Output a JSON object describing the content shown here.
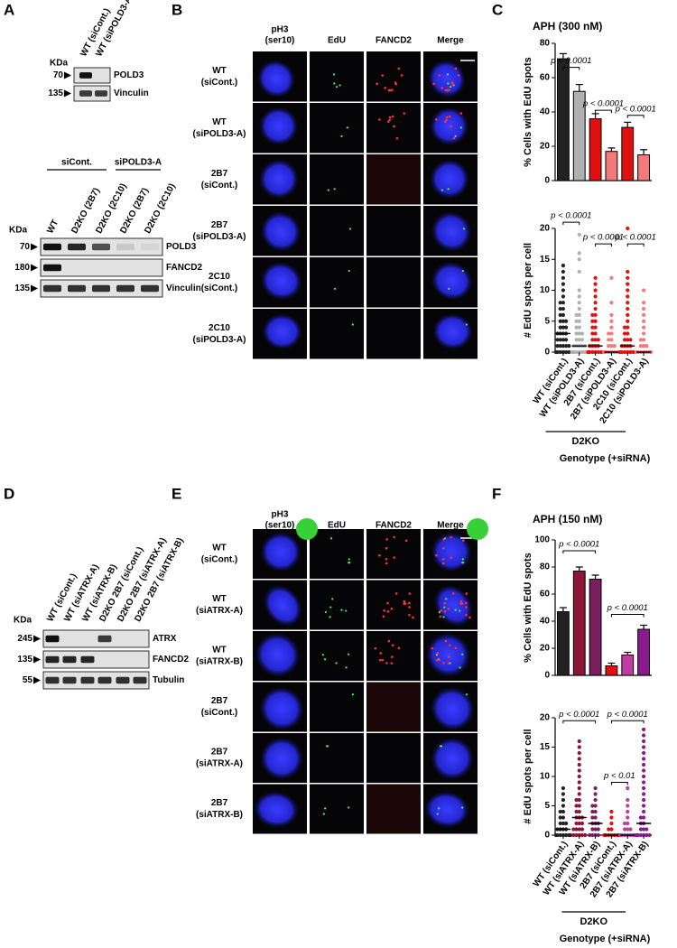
{
  "panel_labels": [
    "A",
    "B",
    "C",
    "D",
    "E",
    "F"
  ],
  "blot_a1": {
    "kda": "KDa",
    "lanes": [
      "WT (siCont.)",
      "WT (siPOLD3-A)"
    ],
    "rows": [
      {
        "mw": 70,
        "label": "POLD3"
      },
      {
        "mw": 135,
        "label": "Vinculin"
      }
    ]
  },
  "blot_a2": {
    "kda": "KDa",
    "groups": [
      "siCont.",
      "siPOLD3-A"
    ],
    "lanes": [
      "WT",
      "D2KO (2B7)",
      "D2KO (2C10)",
      "D2KO (2B7)",
      "D2KO (2C10)"
    ],
    "rows": [
      {
        "mw": 70,
        "label": "POLD3"
      },
      {
        "mw": 180,
        "label": "FANCD2"
      },
      {
        "mw": 135,
        "label": "Vinculin"
      }
    ]
  },
  "blot_d": {
    "kda": "KDa",
    "lanes": [
      "WT (siCont.)",
      "WT (siATRX-A)",
      "WT (siATRX-B)",
      "D2KO 2B7 (siCont.)",
      "D2KO 2B7 (siATRX-A)",
      "D2KO 2B7 (siATRX-B)"
    ],
    "rows": [
      {
        "mw": 245,
        "label": "ATRX"
      },
      {
        "mw": 135,
        "label": "FANCD2"
      },
      {
        "mw": 55,
        "label": "Tubulin"
      }
    ]
  },
  "images_b": {
    "columns": [
      [
        "pH3",
        "(ser10)"
      ],
      [
        "EdU"
      ],
      [
        "FANCD2"
      ],
      [
        "Merge"
      ]
    ],
    "rows": [
      [
        "WT",
        "(siCont.)"
      ],
      [
        "WT",
        "(siPOLD3-A)"
      ],
      [
        "2B7",
        "(siCont.)"
      ],
      [
        "2B7",
        "(siPOLD3-A)"
      ],
      [
        "2C10",
        "(siCont.)"
      ],
      [
        "2C10",
        "(siPOLD3-A)"
      ]
    ]
  },
  "images_e": {
    "columns": [
      [
        "pH3",
        "(ser10)"
      ],
      [
        "EdU"
      ],
      [
        "FANCD2"
      ],
      [
        "Merge"
      ]
    ],
    "rows": [
      [
        "WT",
        "(siCont.)"
      ],
      [
        "WT",
        "(siATRX-A)"
      ],
      [
        "WT",
        "(siATRX-B)"
      ],
      [
        "2B7",
        "(siCont.)"
      ],
      [
        "2B7",
        "(siATRX-A)"
      ],
      [
        "2B7",
        "(siATRX-B)"
      ]
    ]
  },
  "chart_data": [
    {
      "type": "bar",
      "title": "APH (300 nM)",
      "ylabel": "% Cells with EdU spots",
      "values": [
        71,
        52,
        36,
        17,
        31,
        15
      ],
      "errors": [
        3,
        4,
        3,
        2,
        3,
        3
      ],
      "colors": [
        "#222222",
        "#b0b0b0",
        "#e01010",
        "#f27a7a",
        "#e01010",
        "#f27a7a"
      ],
      "ylim": [
        0,
        80
      ],
      "yticks": [
        0,
        20,
        40,
        60,
        80
      ],
      "annotations": [
        "p < 0.0001",
        "p < 0.0001",
        "p < 0.0001"
      ]
    },
    {
      "type": "strip",
      "ylabel": "# EdU spots per cell",
      "categories": [
        "WT (siCont.)",
        "WT (siPOLD3-A)",
        "2B7 (siCont.)",
        "2B7 (siPOLD3-A)",
        "2C10 (siCont.)",
        "2C10 (siPOLD3-A)"
      ],
      "points": [
        [
          0,
          0,
          0,
          0,
          0,
          0,
          1,
          1,
          1,
          1,
          1,
          2,
          2,
          2,
          2,
          3,
          3,
          3,
          3,
          4,
          4,
          4,
          5,
          5,
          5,
          6,
          6,
          7,
          7,
          8,
          8,
          9,
          10,
          11,
          12,
          13,
          14
        ],
        [
          0,
          0,
          0,
          0,
          0,
          0,
          0,
          1,
          1,
          1,
          1,
          1,
          2,
          2,
          2,
          3,
          3,
          3,
          4,
          4,
          5,
          5,
          6,
          6,
          7,
          8,
          9,
          10,
          13,
          15,
          16,
          19
        ],
        [
          0,
          0,
          0,
          0,
          0,
          0,
          1,
          1,
          1,
          1,
          2,
          2,
          2,
          3,
          3,
          4,
          4,
          5,
          5,
          6,
          6,
          7,
          8,
          9,
          10,
          11,
          12
        ],
        [
          0,
          0,
          0,
          0,
          0,
          0,
          0,
          0,
          1,
          1,
          1,
          2,
          2,
          3,
          3,
          4,
          5,
          6,
          8,
          12
        ],
        [
          0,
          0,
          0,
          0,
          0,
          0,
          1,
          1,
          1,
          1,
          2,
          2,
          2,
          3,
          3,
          4,
          4,
          5,
          6,
          7,
          8,
          9,
          10,
          11,
          12,
          13,
          20
        ],
        [
          0,
          0,
          0,
          0,
          0,
          0,
          0,
          1,
          1,
          1,
          2,
          2,
          3,
          4,
          5,
          6,
          7,
          8,
          10
        ]
      ],
      "medians": [
        3,
        1,
        1,
        0,
        1,
        0
      ],
      "colors": [
        "#222222",
        "#b0b0b0",
        "#e01010",
        "#f27a7a",
        "#e01010",
        "#f27a7a"
      ],
      "ylim": [
        0,
        20
      ],
      "yticks": [
        0,
        5,
        10,
        15,
        20
      ],
      "annotations": [
        "p < 0.0001",
        "p < 0.0001",
        "p < 0.0001"
      ],
      "group_label": "D2KO",
      "xlabel": "Genotype (+siRNA)"
    },
    {
      "type": "bar",
      "title": "APH (150 nM)",
      "ylabel": "% Cells with EdU spots",
      "values": [
        47,
        77,
        71,
        7,
        15,
        34
      ],
      "errors": [
        3,
        3,
        3,
        2,
        2,
        3
      ],
      "colors": [
        "#222222",
        "#8c1538",
        "#7a1f5e",
        "#e01010",
        "#c03ca0",
        "#8a1a8e"
      ],
      "ylim": [
        0,
        100
      ],
      "yticks": [
        0,
        20,
        40,
        60,
        80,
        100
      ],
      "annotations": [
        "p < 0.0001",
        "p < 0.0001"
      ]
    },
    {
      "type": "strip",
      "ylabel": "# EdU spots per cell",
      "categories": [
        "WT (siCont.)",
        "WT (siATRX-A)",
        "WT (siATRX-B)",
        "2B7 (siCont.)",
        "2B7 (siATRX-A)",
        "2B7 (siATRX-B)"
      ],
      "points": [
        [
          0,
          0,
          0,
          0,
          0,
          0,
          0,
          1,
          1,
          1,
          1,
          2,
          2,
          2,
          3,
          3,
          4,
          4,
          5,
          6,
          7,
          8
        ],
        [
          0,
          0,
          0,
          0,
          0,
          1,
          1,
          1,
          1,
          2,
          2,
          2,
          3,
          3,
          3,
          4,
          4,
          5,
          5,
          6,
          6,
          7,
          8,
          9,
          10,
          11,
          12,
          13,
          14,
          15,
          16
        ],
        [
          0,
          0,
          0,
          0,
          1,
          1,
          1,
          2,
          2,
          2,
          3,
          3,
          4,
          4,
          5,
          5,
          6,
          7,
          8
        ],
        [
          0,
          0,
          0,
          0,
          0,
          0,
          0,
          1,
          1,
          2,
          3,
          4
        ],
        [
          0,
          0,
          0,
          0,
          0,
          0,
          0,
          1,
          1,
          1,
          2,
          2,
          3,
          4,
          5,
          6,
          8
        ],
        [
          0,
          0,
          0,
          0,
          0,
          0,
          1,
          1,
          1,
          2,
          2,
          3,
          3,
          4,
          5,
          6,
          7,
          8,
          9,
          10,
          11,
          12,
          13,
          14,
          15,
          16,
          17,
          18
        ]
      ],
      "medians": [
        1,
        3,
        2,
        0,
        0,
        2
      ],
      "colors": [
        "#222222",
        "#8c1538",
        "#7a1f5e",
        "#e01010",
        "#c03ca0",
        "#8a1a8e"
      ],
      "ylim": [
        0,
        20
      ],
      "yticks": [
        0,
        5,
        10,
        15,
        20
      ],
      "annotations": [
        "p < 0.0001",
        "p < 0.0001",
        "p < 0.01"
      ],
      "group_label": "D2KO",
      "xlabel": "Genotype (+siRNA)"
    }
  ]
}
